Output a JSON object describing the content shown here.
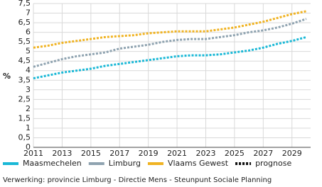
{
  "chart_data": {
    "type": "line",
    "ylabel": "%",
    "x": [
      2011,
      2012,
      2013,
      2014,
      2015,
      2016,
      2017,
      2018,
      2019,
      2020,
      2021,
      2022,
      2023,
      2024,
      2025,
      2026,
      2027,
      2028,
      2029,
      2030
    ],
    "series": [
      {
        "name": "Maasmechelen",
        "color": "#1ab8d6",
        "values": [
          3.6,
          3.75,
          3.9,
          4.0,
          4.1,
          4.25,
          4.35,
          4.45,
          4.55,
          4.65,
          4.75,
          4.8,
          4.8,
          4.85,
          4.95,
          5.05,
          5.2,
          5.4,
          5.55,
          5.75
        ]
      },
      {
        "name": "Limburg",
        "color": "#8fa3b0",
        "values": [
          4.2,
          4.4,
          4.6,
          4.75,
          4.85,
          4.95,
          5.15,
          5.25,
          5.35,
          5.5,
          5.6,
          5.65,
          5.65,
          5.75,
          5.85,
          6.0,
          6.1,
          6.25,
          6.45,
          6.7
        ]
      },
      {
        "name": "Vlaams Gewest",
        "color": "#f0b323",
        "values": [
          5.2,
          5.3,
          5.45,
          5.55,
          5.65,
          5.75,
          5.8,
          5.85,
          5.95,
          6.0,
          6.05,
          6.05,
          6.05,
          6.15,
          6.25,
          6.4,
          6.55,
          6.75,
          6.95,
          7.1
        ]
      }
    ],
    "forecast_label": "prognose",
    "source": "Verwerking: provincie Limburg - Directie Mens - Steunpunt Sociale Planning",
    "xlim": [
      2011,
      2030.3
    ],
    "xticks": [
      2011,
      2013,
      2015,
      2017,
      2019,
      2021,
      2023,
      2025,
      2027,
      2029
    ],
    "ylim": [
      0,
      7.5
    ],
    "yticks": [
      0,
      {
        "value": 0.5,
        "label": "0,5"
      },
      1,
      {
        "value": 1.5,
        "label": "1,5"
      },
      2,
      {
        "value": 2.5,
        "label": "2,5"
      },
      3,
      {
        "value": 3.5,
        "label": "3,5"
      },
      4,
      {
        "value": 4.5,
        "label": "4,5"
      },
      5,
      {
        "value": 5.5,
        "label": "5,5"
      },
      6,
      {
        "value": 6.5,
        "label": "6,5"
      },
      7,
      {
        "value": 7.5,
        "label": "7,5"
      }
    ],
    "grid": true
  }
}
